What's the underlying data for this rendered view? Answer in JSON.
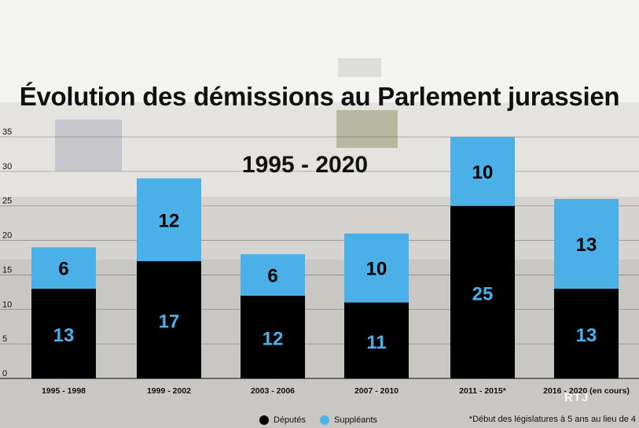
{
  "title": "Évolution des démissions au Parlement jurassien",
  "subtitle": "1995 - 2020",
  "footnote": "*Début des législatures à 5 ans au lieu de 4",
  "logo_text": "RTJ",
  "colors": {
    "deputes": "#000000",
    "suppleants": "#4bb0e8",
    "label_on_dark": "#4bb0e8",
    "label_on_light": "#000000"
  },
  "chart_data": {
    "type": "bar",
    "stacked": true,
    "title": "Évolution des démissions au Parlement jurassien",
    "subtitle": "1995 - 2020",
    "categories": [
      "1995 - 1998",
      "1999 - 2002",
      "2003 - 2006",
      "2007 - 2010",
      "2011 - 2015*",
      "2016 - 2020 (en cours)"
    ],
    "series": [
      {
        "name": "Députés",
        "values": [
          13,
          17,
          12,
          11,
          25,
          13
        ]
      },
      {
        "name": "Suppléants",
        "values": [
          6,
          12,
          6,
          10,
          10,
          13
        ]
      }
    ],
    "yticks": [
      0,
      5,
      10,
      15,
      20,
      25,
      30,
      35
    ],
    "ylim": [
      0,
      35
    ],
    "grid": true,
    "legend_position": "bottom",
    "xlabel": "",
    "ylabel": ""
  }
}
